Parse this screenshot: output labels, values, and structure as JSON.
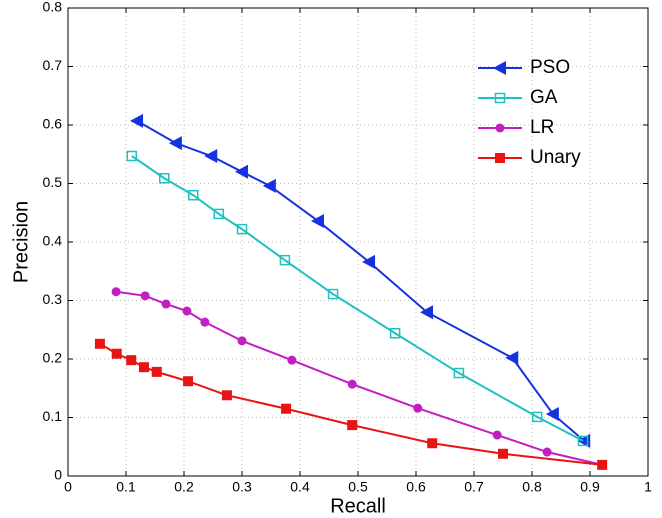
{
  "chart_data": {
    "type": "line",
    "xlabel": "Recall",
    "ylabel": "Precision",
    "xlim": [
      0,
      1
    ],
    "ylim": [
      0,
      0.8
    ],
    "xticks": [
      0,
      0.1,
      0.2,
      0.3,
      0.4,
      0.5,
      0.6,
      0.7,
      0.8,
      0.9,
      1
    ],
    "yticks": [
      0,
      0.1,
      0.2,
      0.3,
      0.4,
      0.5,
      0.6,
      0.7,
      0.8
    ],
    "grid": true,
    "legend": "upper right",
    "series": [
      {
        "name": "PSO",
        "color": "#1632e0",
        "marker": "triangle-left",
        "x": [
          0.119,
          0.186,
          0.247,
          0.3,
          0.348,
          0.431,
          0.519,
          0.619,
          0.766,
          0.836,
          0.89
        ],
        "values": [
          0.607,
          0.569,
          0.547,
          0.52,
          0.496,
          0.436,
          0.366,
          0.28,
          0.202,
          0.106,
          0.06
        ]
      },
      {
        "name": "GA",
        "color": "#1fc1c1",
        "marker": "square-open",
        "x": [
          0.11,
          0.166,
          0.216,
          0.26,
          0.3,
          0.374,
          0.457,
          0.564,
          0.674,
          0.809,
          0.888
        ],
        "values": [
          0.547,
          0.509,
          0.48,
          0.448,
          0.422,
          0.369,
          0.311,
          0.244,
          0.176,
          0.101,
          0.06
        ]
      },
      {
        "name": "LR",
        "color": "#c21fc2",
        "marker": "circle",
        "x": [
          0.083,
          0.133,
          0.169,
          0.205,
          0.236,
          0.3,
          0.386,
          0.49,
          0.603,
          0.74,
          0.826,
          0.921
        ],
        "values": [
          0.315,
          0.308,
          0.294,
          0.282,
          0.263,
          0.231,
          0.198,
          0.157,
          0.116,
          0.07,
          0.041,
          0.019
        ]
      },
      {
        "name": "Unary",
        "color": "#e81414",
        "marker": "square",
        "x": [
          0.055,
          0.084,
          0.109,
          0.131,
          0.153,
          0.207,
          0.274,
          0.376,
          0.49,
          0.628,
          0.75,
          0.921
        ],
        "values": [
          0.226,
          0.209,
          0.198,
          0.186,
          0.178,
          0.162,
          0.138,
          0.115,
          0.087,
          0.056,
          0.038,
          0.019
        ]
      }
    ]
  }
}
